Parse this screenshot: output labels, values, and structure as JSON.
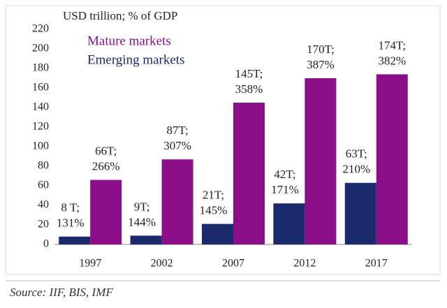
{
  "chart_data": {
    "type": "bar",
    "y_label": "USD trillion; % of GDP",
    "categories": [
      "1997",
      "2002",
      "2007",
      "2012",
      "2017"
    ],
    "series": [
      {
        "name": "Emerging markets",
        "color": "#1b2a6b",
        "values": [
          8,
          9,
          21,
          42,
          63
        ],
        "value_labels": [
          "8 T;",
          "9T;",
          "21T;",
          "42T;",
          "63T;"
        ],
        "gdp_labels": [
          "131%",
          "144%",
          "145%",
          "171%",
          "210%"
        ]
      },
      {
        "name": "Mature markets",
        "color": "#8c0f8a",
        "values": [
          66,
          87,
          145,
          170,
          174
        ],
        "value_labels": [
          "66T;",
          "87T;",
          "145T;",
          "170T;",
          "174T;"
        ],
        "gdp_labels": [
          "266%",
          "307%",
          "358%",
          "387%",
          "382%"
        ]
      }
    ],
    "ylim": [
      0,
      220
    ],
    "yticks": [
      0,
      20,
      40,
      60,
      80,
      100,
      120,
      140,
      160,
      180,
      200,
      220
    ],
    "source": "Source: IIF, BIS, IMF"
  }
}
